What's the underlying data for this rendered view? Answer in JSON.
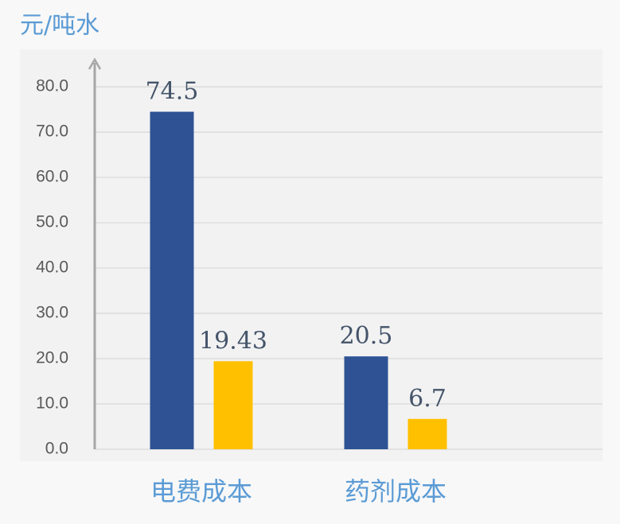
{
  "chart_data": {
    "type": "bar",
    "y_label": "元/吨水",
    "categories": [
      "电费成本",
      "药剂成本"
    ],
    "series": [
      {
        "color": "#2e5294",
        "values": [
          74.5,
          20.5
        ]
      },
      {
        "color": "#ffc000",
        "values": [
          19.43,
          6.7
        ]
      }
    ],
    "ylim": [
      0,
      86
    ],
    "yticks": [
      {
        "value": 0,
        "label": "0.0"
      },
      {
        "value": 10,
        "label": "10.0"
      },
      {
        "value": 20,
        "label": "20.0"
      },
      {
        "value": 30,
        "label": "30.0"
      },
      {
        "value": 40,
        "label": "40.0"
      },
      {
        "value": 50,
        "label": "50.0"
      },
      {
        "value": 60,
        "label": "60.0"
      },
      {
        "value": 70,
        "label": "70.0"
      },
      {
        "value": 80,
        "label": "80.0"
      }
    ],
    "grid": true
  }
}
